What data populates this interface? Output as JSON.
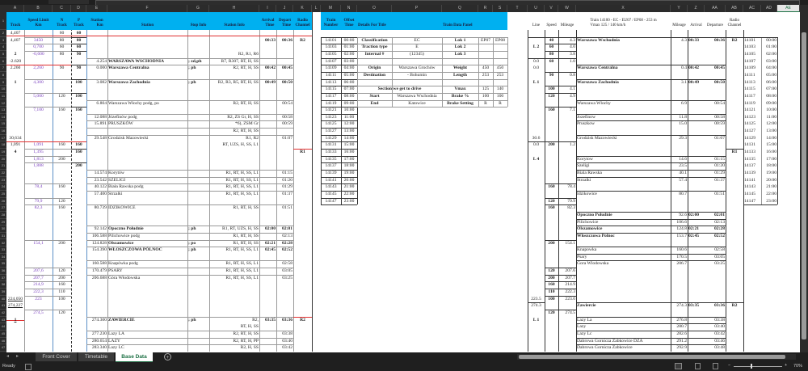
{
  "workbook": {
    "sheet_tabs": [
      {
        "label": "Front Cover",
        "active": false
      },
      {
        "label": "Timetable",
        "active": false
      },
      {
        "label": "Base Data",
        "active": true
      }
    ],
    "add_sheet_icon": "plus-circle-icon",
    "status": "Ready",
    "zoom": "70%",
    "selected_column": "AE",
    "accent_color": "#00b0f0",
    "speed_color": "#7a3fbf",
    "marker_color": "#e03030"
  },
  "columns": [
    "A",
    "B",
    "C",
    "D",
    "E",
    "F",
    "G",
    "H",
    "I",
    "J",
    "K",
    "L",
    "M",
    "N",
    "O",
    "P",
    "Q",
    "R",
    "S",
    "T",
    "U",
    "V",
    "W",
    "X",
    "Y",
    "Z",
    "AA",
    "AB",
    "AC",
    "AD",
    "AE"
  ],
  "grid": {
    "1": {
      "A": "Track",
      "B": "Speed Limit\nKm",
      "C": "N\nTrack",
      "D": "P\nTrack",
      "E": "Station\nKm",
      "F": "Station",
      "G": "Stop Info",
      "H": "Station Info",
      "I": "Arrival\nTime",
      "J": "Depart\nTime",
      "K": "Radio\nChannel",
      "M": "Train\nNumber",
      "N": "Offset\nTime",
      "O": "Details For Title",
      "Q": "Train Data Panel",
      "U": "Line",
      "V": "Speed",
      "W": "Mileage",
      "X": "Train 14100 - EC - EU07 / EP08 - 253 m\nVmax 125 / 140 km/h",
      "Y": "Mileage",
      "Z": "Arrival",
      "AA": "Departure",
      "AB": "Radio\nChannel"
    },
    "2": {
      "A": "4,407",
      "C": "60",
      "D": "60"
    },
    "3": {
      "A": "4,407",
      "B": "3450",
      "C": "80",
      "D": "80",
      "I": "00:33",
      "J": "00:36",
      "K": "R2",
      "M": "14101",
      "N": "00:00",
      "O": "Classification",
      "P": "EC",
      "Q": "Lok 1",
      "R": "EP07",
      "S": "EP08",
      "V": "40",
      "W": "4.3",
      "X": "Warszawa Wschodnia",
      "Y": "4.3",
      "Z": "00:33",
      "AA": "00:36",
      "AB": "R2",
      "AC": "14101",
      "AD": "00:00"
    },
    "4": {
      "B": "0,700",
      "C": "60",
      "D": "60",
      "M": "14103",
      "N": "01:00",
      "O": "Traction type",
      "P": "E",
      "Q": "Lok 2",
      "U": "L 2",
      "V": "60",
      "W": "4.0",
      "AC": "14103",
      "AD": "01:00"
    },
    "5": {
      "A": "2",
      "B": "-0,600",
      "C": "80",
      "D": "90",
      "H": "R2, R1, R6",
      "M": "14105",
      "N": "02:00",
      "O": "Internal #",
      "P": "(12345)",
      "Q": "Lok 3",
      "V": "80",
      "W": "3.8",
      "AC": "14105",
      "AD": "02:00"
    },
    "6": {
      "A": "-2.620",
      "E": "4.254",
      "F": "WARSZAWA WSCHODNIA",
      "G": "; zd,ph",
      "H": "R7, R307, RT, H, SS",
      "M": "14107",
      "N": "03:00",
      "U": "0.0",
      "V": "60",
      "W": "1.0",
      "AC": "14107",
      "AD": "03:00"
    },
    "7": {
      "A": "2.260",
      "B": "2,260",
      "C": "90",
      "D": "90",
      "E": "0.000",
      "F": "Warszawa Centralna",
      "G": "; ph",
      "H": "R2, RT, H, SS",
      "I": "00:42",
      "J": "00:45",
      "M": "14109",
      "N": "04:00",
      "O": "Origin",
      "P": "Warszawa Grochów",
      "Q": "Weight",
      "R": "450",
      "S": "450",
      "U": "0.0",
      "X": "Warszawa  Centralna",
      "Y": "0.4",
      "Z": "00:42",
      "AA": "00:45",
      "AC": "14109",
      "AD": "04:00"
    },
    "8": {
      "M": "14111",
      "N": "05:00",
      "O": "Destination",
      "P": "- Bohumin",
      "Q": "Length",
      "R": "253",
      "S": "253",
      "V": "90",
      "W": "0.8",
      "AC": "14111",
      "AD": "05:00"
    },
    "9": {
      "A": "1",
      "B": "4,300",
      "D": "100",
      "E": "3.082",
      "F": "Warszawa Zachodnia",
      "G": "; ph",
      "H": "R2, R3, R5, RT, H, SS",
      "I": "00:49",
      "J": "00:50",
      "M": "14113",
      "N": "06:00",
      "U": "L 1",
      "X": "Warszawa Zachodnia",
      "Y": "3.1",
      "Z": "00:49",
      "AA": "00:50",
      "AC": "14113",
      "AD": "06:00"
    },
    "10": {
      "M": "14115",
      "N": "07:00",
      "O": "Section we get to drive",
      "Q": "Vmax",
      "R": "125",
      "S": "140",
      "V": "100",
      "W": "4.1",
      "AC": "14115",
      "AD": "07:00"
    },
    "11": {
      "B": "5,000",
      "C": "120",
      "D": "100",
      "M": "14117",
      "N": "08:00",
      "O": "Start",
      "P": "Warszawa Wschodnia",
      "Q": "Brake %",
      "R": "100",
      "S": "100",
      "V": "120",
      "W": "4.9",
      "AC": "14117",
      "AD": "08:00"
    },
    "12": {
      "E": "6.804",
      "F": "Warszawa Włochy podg, po",
      "H": "R2, RT, H, SS",
      "J": "00:54",
      "M": "14119",
      "N": "09:00",
      "O": "End",
      "P": "Katowice",
      "Q": "Brake Setting",
      "R": "R",
      "S": "R",
      "X": "Warszawa Wlochy",
      "Y": "6.9",
      "AA": "00:54",
      "AC": "14119",
      "AD": "09:00"
    },
    "13": {
      "B": "7,100",
      "C": "160",
      "D": "160",
      "M": "14121",
      "N": "10:00",
      "V": "160",
      "W": "7.1",
      "AC": "14121",
      "AD": "10:00"
    },
    "14": {
      "E": "12.088",
      "F": "Józefinów podg",
      "H": "R2, ZS Gr, H, SS",
      "J": "00:58",
      "M": "14123",
      "N": "11:00",
      "X": "Jozefinow",
      "Y": "11.8",
      "AA": "00:58",
      "AC": "14123",
      "AD": "11:00"
    },
    "15": {
      "E": "15.891",
      "F": "PRUSZKÓW",
      "H": "*6), ZSM Gr",
      "J": "00:59",
      "M": "14125",
      "N": "12:00",
      "X": "Pruszkow",
      "Y": "15.0",
      "AA": "00:59",
      "AC": "14125",
      "AD": "12:00"
    },
    "16": {
      "H": "R2, RT, H, SS",
      "M": "14127",
      "N": "13:00",
      "AC": "14127",
      "AD": "13:00"
    },
    "17": {
      "A": "30,634",
      "E": "29.548",
      "F": "Grodzisk Mazowiecki",
      "H": "R1, R2",
      "J": "01:07",
      "M": "14129",
      "N": "14:00",
      "U": "30.6",
      "X": "Grodzisk Mazowiecki",
      "Y": "29.3",
      "AA": "01:07",
      "AC": "14129",
      "AD": "14:00"
    },
    "18": {
      "A": "1,091",
      "B": "1,091",
      "C": "160",
      "D": "160",
      "H": "RT, UZS, H, SS, L1",
      "M": "14131",
      "N": "15:00",
      "U": "0.0",
      "V": "200",
      "W": "1.2",
      "AC": "14131",
      "AD": "15:00"
    },
    "19": {
      "A": "4",
      "B": "1,395",
      "D": "160",
      "K": "R1",
      "M": "14133",
      "N": "16:00",
      "AB": "R1",
      "AC": "14133",
      "AD": "16:00"
    },
    "20": {
      "B": "1,813",
      "C": "200",
      "M": "14135",
      "N": "17:00",
      "U": "L 4",
      "X": "Korytow",
      "Y": "14.6",
      "AA": "01:15",
      "AC": "14135",
      "AD": "17:00"
    },
    "21": {
      "B": "1,888",
      "D": "200",
      "M": "14137",
      "N": "18:00",
      "X": "Szeligi",
      "Y": "23.5",
      "AA": "01:20",
      "AC": "14137",
      "AD": "18:00"
    },
    "22": {
      "E": "14.574",
      "F": "Korytów",
      "H": "R1, RT, H, SS, L1",
      "J": "01:15",
      "M": "14139",
      "N": "19:00",
      "X": "Biala Rawska",
      "Y": "40.1",
      "AA": "01:29",
      "AC": "14139",
      "AD": "19:00"
    },
    "23": {
      "E": "23.542",
      "F": "SZELIGI",
      "H": "R1, RT, H, SS, L1",
      "J": "01:20",
      "M": "14141",
      "N": "20:00",
      "X": "Strzalki",
      "Y": "57.4",
      "AA": "01:37",
      "AC": "14141",
      "AD": "20:00"
    },
    "24": {
      "B": "78,4",
      "C": "160",
      "E": "40.122",
      "F": "Biała Rawska podg",
      "H": "R1, RT, H, SS, L1",
      "J": "01:29",
      "M": "14143",
      "N": "21:00",
      "V": "160",
      "W": "78.4",
      "AC": "14143",
      "AD": "21:00"
    },
    "25": {
      "E": "57.400",
      "F": "Strzalki",
      "H": "R1, RT, H, SS, L1",
      "J": "01:37",
      "M": "14145",
      "N": "22:00",
      "X": "Idzikowice",
      "Y": "80.7",
      "AA": "01:51",
      "AC": "14145",
      "AD": "22:00"
    },
    "26": {
      "B": "79,9",
      "C": "120",
      "M": "14147",
      "N": "23:00",
      "V": "120",
      "W": "79.9",
      "AC": "14147",
      "AD": "23:00"
    },
    "27": {
      "B": "82,3",
      "C": "160",
      "E": "80.739",
      "F": "IDZIKOWICE",
      "H": "R1, RT, H, SS",
      "J": "01:51",
      "V": "160",
      "W": "82.3"
    },
    "28": {
      "X": "Opoczno Poludnie",
      "Y": "92.6",
      "Z": "02:00",
      "AA": "02:01"
    },
    "29": {
      "X": "Pilichowice",
      "Y": "106.6",
      "AA": "02:13"
    },
    "30": {
      "E": "92.142",
      "F": "Opoczno Południe",
      "G": "; ph",
      "H": "R1, RT, UZS, H, SS",
      "I": "02:00",
      "J": "02:01",
      "X": "Olszamowice",
      "Y": "124.8",
      "Z": "02:21",
      "AA": "02:28"
    },
    "31": {
      "E": "106.588",
      "F": "Pilichowice podg",
      "H": "R1, RT, H, SS",
      "J": "02:13",
      "X": "Wloszczowa Polnoc",
      "Y": "153.7",
      "Z": "02:45",
      "AA": "02:52"
    },
    "32": {
      "B": "154,1",
      "C": "200",
      "E": "124.828",
      "F": "Olszamowice",
      "G": "; po",
      "H": "R1, RT, H, SS",
      "I": "02:21",
      "J": "02:28",
      "V": "200",
      "W": "154.1"
    },
    "33": {
      "E": "154.390",
      "F": "WŁOSZCZOWA PÓLNOC",
      "G": "; ph",
      "H": "R1, RT, H, SS, L1",
      "I": "02:45",
      "J": "02:52",
      "X": "Knapowka",
      "Y": "160.6",
      "AA": "02:58"
    },
    "34": {
      "X": "Psary",
      "Y": "170.5",
      "AA": "03:05"
    },
    "35": {
      "E": "160.588",
      "F": "Knapówka podg",
      "H": "R1, RT, H, SS, L1",
      "J": "02:58",
      "X": "Gora Wlodowska",
      "Y": "206.7",
      "AA": "03:25"
    },
    "36": {
      "B": "207,6",
      "C": "120",
      "E": "170.479",
      "F": "PSARY",
      "H": "R1, RT, H, SS, L1",
      "J": "03:05",
      "V": "120",
      "W": "207.6"
    },
    "37": {
      "B": "207,7",
      "C": "200",
      "E": "206.688",
      "F": "Góra Włodowska",
      "H": "R1, RT, H, SS, L1",
      "J": "03:25",
      "V": "200",
      "W": "207.7"
    },
    "38": {
      "B": "214,9",
      "C": "160",
      "V": "160",
      "W": "214.9"
    },
    "39": {
      "B": "222,3",
      "C": "110",
      "V": "110",
      "W": "222.3"
    },
    "40": {
      "A": "224,050",
      "B": "223",
      "C": "100",
      "U": "223.5",
      "V": "100",
      "W": "223.0"
    },
    "41": {
      "A": "274,227",
      "U": "274.3",
      "X": "Zawiercie",
      "Y": "274.3",
      "Z": "03:35",
      "AA": "03:36",
      "AB": "R2"
    },
    "42": {
      "B": "274,5",
      "C": "120",
      "V": "120",
      "W": "274.5"
    },
    "43": {
      "A": "1",
      "E": "274.300",
      "F": "ZAWIERCIE",
      "G": "; ph",
      "H": "R2,",
      "I": "03:35",
      "J": "03:36",
      "K": "R2",
      "U": "L 1",
      "X": "Lazy La",
      "Y": "276.8",
      "AA": "03:38"
    },
    "44": {
      "H": "RT, H, SS",
      "X": "Lazy",
      "Y": "280.7",
      "AA": "03:40"
    },
    "45": {
      "E": "277.230",
      "F": "Lazy LA",
      "H": "R2, RT, H, SS",
      "J": "03:38",
      "X": "Lazy Lc",
      "Y": "282.6",
      "AA": "03:42"
    },
    "46": {
      "E": "280.654",
      "F": "LAZY",
      "H": "R2, RT, H, PP",
      "J": "03:40",
      "X": "Dabrowa Gornicza Zabkowice DZA",
      "Y": "291.2",
      "AA": "03:46"
    },
    "47": {
      "E": "283.340",
      "F": "Lazy LC",
      "H": "R2, H, SS",
      "J": "03:42",
      "X": "Dabrowa Gornicza Zabkowice",
      "Y": "292.9",
      "AA": "03:48"
    }
  }
}
